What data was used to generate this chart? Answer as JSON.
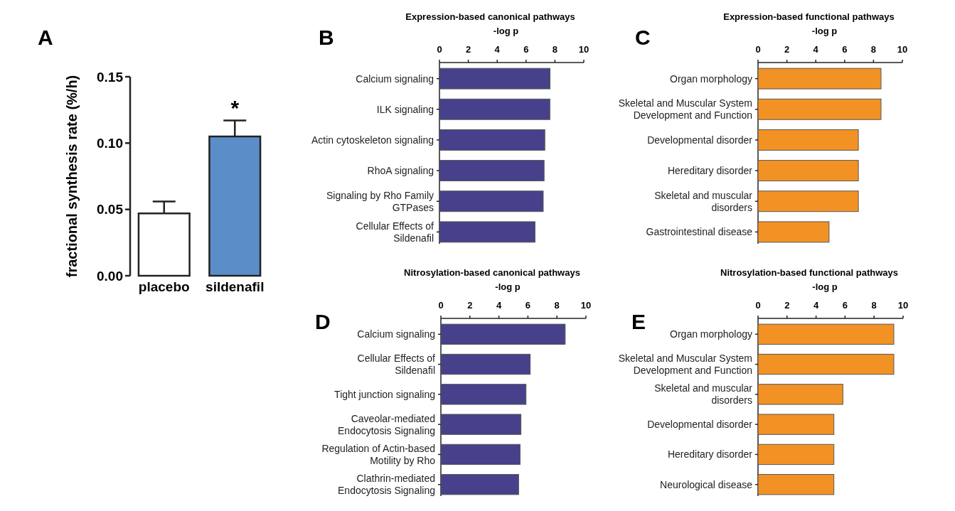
{
  "chart_data": [
    {
      "type": "bar",
      "ylabel": "fractional synthesis rate (%/h)",
      "categories": [
        "placebo",
        "sildenafil"
      ],
      "values": [
        0.047,
        0.105
      ],
      "errors": [
        [
          0.047,
          0.056
        ],
        [
          0.105,
          0.117
        ]
      ],
      "colors": [
        "#ffffff",
        "#5b8dc9"
      ],
      "ylim": [
        0,
        0.15
      ],
      "yticks": [
        {
          "value": 0,
          "label": "0.00"
        },
        {
          "value": 0.05,
          "label": "0.05"
        },
        {
          "value": 0.1,
          "label": "0.10"
        },
        {
          "value": 0.15,
          "label": "0.15"
        }
      ],
      "annotations": [
        "A",
        "*"
      ]
    },
    {
      "type": "bar",
      "orientation": "horizontal",
      "title": "Expression-based canonical pathways",
      "xlabel": "-log p",
      "categories": [
        "Calcium signaling",
        "ILK signaling",
        "Actin cytoskeleton signaling",
        "RhoA signaling",
        "Signaling by Rho Family GTPases",
        "Cellular Effects of Sildenafil"
      ],
      "values": [
        7.66,
        7.65,
        7.3,
        7.25,
        7.19,
        6.62
      ],
      "color": "#46418a",
      "xlim": [
        0,
        10
      ],
      "xticks": [
        0,
        2,
        4,
        6,
        8,
        10
      ],
      "annotations": [
        "B"
      ]
    },
    {
      "type": "bar",
      "orientation": "horizontal",
      "title": "Expression-based functional pathways",
      "xlabel": "-log p",
      "categories": [
        "Organ morphology",
        "Skeletal and Muscular System Development and Function",
        "Developmental disorder",
        "Hereditary disorder",
        "Skeletal and muscular disorders",
        "Gastrointestinal disease"
      ],
      "values": [
        8.52,
        8.52,
        6.95,
        6.95,
        6.95,
        4.92
      ],
      "color": "#f39224",
      "xlim": [
        0,
        10
      ],
      "xticks": [
        0,
        2,
        4,
        6,
        8,
        10
      ],
      "annotations": [
        "C"
      ]
    },
    {
      "type": "bar",
      "orientation": "horizontal",
      "title": "Nitrosylation-based canonical pathways",
      "xlabel": "-log p",
      "categories": [
        "Calcium signaling",
        "Cellular Effects of Sildenafil",
        "Tight junction signaling",
        "Caveolar-mediated Endocytosis Signaling",
        "Regulation of Actin-based Motility by Rho",
        "Clathrin-mediated Endocytosis Signaling"
      ],
      "values": [
        8.57,
        6.16,
        5.87,
        5.52,
        5.46,
        5.36
      ],
      "color": "#46418a",
      "xlim": [
        0,
        10
      ],
      "xticks": [
        0,
        2,
        4,
        6,
        8,
        10
      ],
      "annotations": [
        "D"
      ]
    },
    {
      "type": "bar",
      "orientation": "horizontal",
      "title": "Nitrosylation-based functional pathways",
      "xlabel": "-log p",
      "categories": [
        "Organ morphology",
        "Skeletal and Muscular System Development and Function",
        "Skeletal and muscular disorders",
        "Developmental disorder",
        "Hereditary disorder",
        "Neurological disease"
      ],
      "values": [
        9.36,
        9.36,
        5.85,
        5.23,
        5.23,
        5.23
      ],
      "color": "#f39224",
      "xlim": [
        0,
        10
      ],
      "xticks": [
        0,
        2,
        4,
        6,
        8,
        10
      ],
      "annotations": [
        "E"
      ]
    }
  ]
}
